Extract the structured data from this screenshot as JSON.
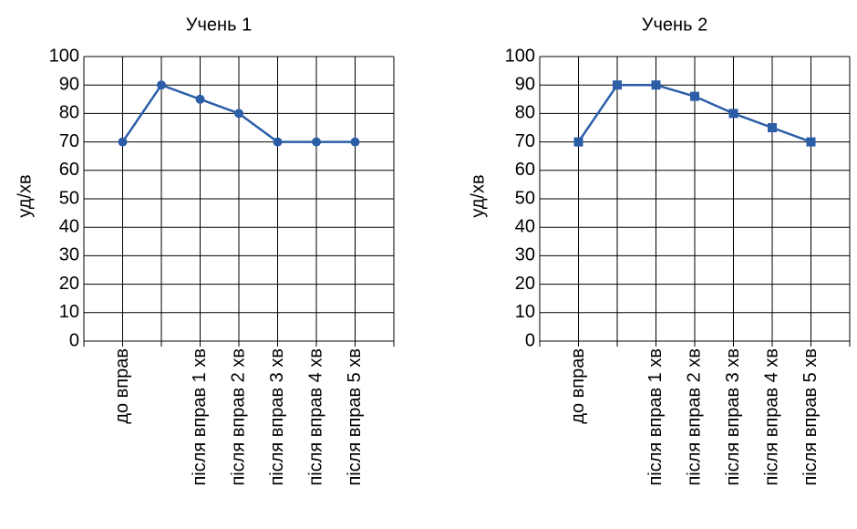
{
  "chart_data": [
    {
      "type": "line",
      "title": "Учень 1",
      "ylabel": "уд/хв",
      "categories": [
        "до вправ",
        null,
        "після вправ 1 хв",
        "після вправ 2 хв",
        "після вправ 3 хв",
        "після вправ 4 хв",
        "після вправ 5 хв"
      ],
      "values": [
        70,
        90,
        85,
        80,
        70,
        70,
        70
      ],
      "color": "#2b5ea7",
      "marker": "circle",
      "ylim": [
        0,
        100
      ],
      "yticks": [
        0,
        10,
        20,
        30,
        40,
        50,
        60,
        70,
        80,
        90,
        100
      ],
      "grid": true
    },
    {
      "type": "line",
      "title": "Учень 2",
      "ylabel": "уд/хв",
      "categories": [
        "до вправ",
        null,
        "після вправ 1 хв",
        "після вправ 2 хв",
        "після вправ 3 хв",
        "після вправ 4 хв",
        "після вправ 5 хв"
      ],
      "values": [
        70,
        90,
        90,
        86,
        80,
        75,
        70
      ],
      "color": "#2b5ea7",
      "marker": "square",
      "ylim": [
        0,
        100
      ],
      "yticks": [
        0,
        10,
        20,
        30,
        40,
        50,
        60,
        70,
        80,
        90,
        100
      ],
      "grid": true
    }
  ]
}
